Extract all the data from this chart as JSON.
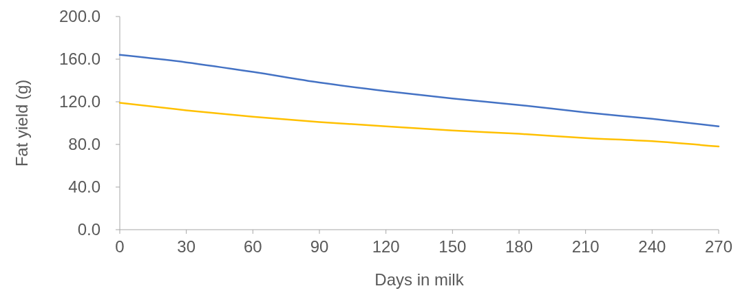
{
  "chart_data": {
    "type": "line",
    "xlabel": "Days in milk",
    "ylabel": "Fat yield (g)",
    "x": [
      0,
      30,
      60,
      90,
      120,
      150,
      180,
      210,
      240,
      270
    ],
    "series": [
      {
        "color": "#4472c4",
        "values": [
          164,
          157,
          148,
          138,
          130,
          123,
          117,
          110,
          104,
          97
        ]
      },
      {
        "color": "#ffc000",
        "values": [
          119,
          112,
          106,
          101,
          97,
          93,
          90,
          86,
          83,
          78
        ]
      }
    ],
    "xlim": [
      0,
      270
    ],
    "xticks": [
      0,
      30,
      60,
      90,
      120,
      150,
      180,
      210,
      240,
      270
    ],
    "ylim": [
      0,
      200
    ],
    "yticks": [
      {
        "value": 0,
        "label": "0.0"
      },
      {
        "value": 40,
        "label": "40.0"
      },
      {
        "value": 80,
        "label": "80.0"
      },
      {
        "value": 120,
        "label": "120.0"
      },
      {
        "value": 160,
        "label": "160.0"
      },
      {
        "value": 200,
        "label": "200.0"
      }
    ],
    "grid": false,
    "marker": "none",
    "line_style": "solid"
  }
}
